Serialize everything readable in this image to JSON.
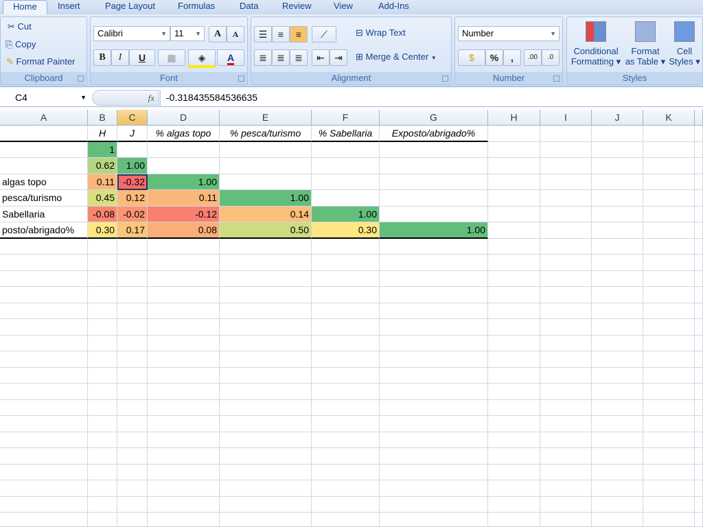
{
  "tabs": [
    "Home",
    "Insert",
    "Page Layout",
    "Formulas",
    "Data",
    "Review",
    "View",
    "Add-Ins"
  ],
  "clipboard": {
    "cut": "Cut",
    "copy": "Copy",
    "format_painter": "Format Painter",
    "label": "Clipboard"
  },
  "font": {
    "name": "Calibri",
    "size": "11",
    "bold": "B",
    "italic": "I",
    "underline": "U",
    "grow": "A",
    "shrink": "A",
    "color_letter": "A",
    "label": "Font"
  },
  "alignment": {
    "wrap_text": "Wrap Text",
    "merge_center": "Merge & Center",
    "label": "Alignment"
  },
  "number": {
    "format": "Number",
    "percent": "%",
    "comma": ",",
    "inc_decimal": ".00",
    "dec_decimal": ".0",
    "label": "Number"
  },
  "styles": {
    "conditional_1": "Conditional",
    "conditional_2": "Formatting",
    "format_table_1": "Format",
    "format_table_2": "as Table",
    "cell_styles_1": "Cell",
    "cell_styles_2": "Styles",
    "label": "Styles"
  },
  "formula_bar": {
    "name_box": "C4",
    "fx": "fx",
    "value": "-0.318435584536635"
  },
  "columns": [
    "A",
    "B",
    "C",
    "D",
    "E",
    "F",
    "G",
    "H",
    "I",
    "J",
    "K"
  ],
  "selected_column": "C",
  "rows": [
    {
      "cells": [
        "",
        "H",
        "J",
        "% algas topo",
        "% pesca/turismo",
        "% Sabellaria",
        "Exposto/abrigado%"
      ]
    },
    {
      "cells": [
        "",
        "1",
        "",
        "",
        "",
        "",
        ""
      ]
    },
    {
      "cells": [
        "",
        "0.62",
        "1.00",
        "",
        "",
        "",
        ""
      ]
    },
    {
      "cells": [
        "algas topo",
        "0.11",
        "-0.32",
        "1.00",
        "",
        "",
        ""
      ]
    },
    {
      "cells": [
        "pesca/turismo",
        "0.45",
        "0.12",
        "0.11",
        "1.00",
        "",
        ""
      ]
    },
    {
      "cells": [
        "Sabellaria",
        "-0.08",
        "-0.02",
        "-0.12",
        "0.14",
        "1.00",
        ""
      ]
    },
    {
      "cells": [
        "posto/abrigado%",
        "0.30",
        "0.17",
        "0.08",
        "0.50",
        "0.30",
        "1.00"
      ]
    }
  ],
  "fills": [
    [
      null,
      null,
      null,
      null,
      null,
      null,
      null
    ],
    [
      null,
      "#63be7b",
      null,
      null,
      null,
      null,
      null
    ],
    [
      null,
      "#b5d680",
      "#63be7b",
      null,
      null,
      null,
      null
    ],
    [
      null,
      "#fbb77a",
      "#f8696b",
      "#63be7b",
      null,
      null,
      null
    ],
    [
      null,
      "#d8df81",
      "#fbb97a",
      "#fbb77a",
      "#63be7b",
      null,
      null
    ],
    [
      null,
      "#f98570",
      "#fa9473",
      "#f97f6f",
      "#fcbf7b",
      "#63be7b",
      null
    ],
    [
      null,
      "#fee683",
      "#fcc57c",
      "#fbae78",
      "#ccdc81",
      "#fee683",
      "#63be7b"
    ]
  ]
}
